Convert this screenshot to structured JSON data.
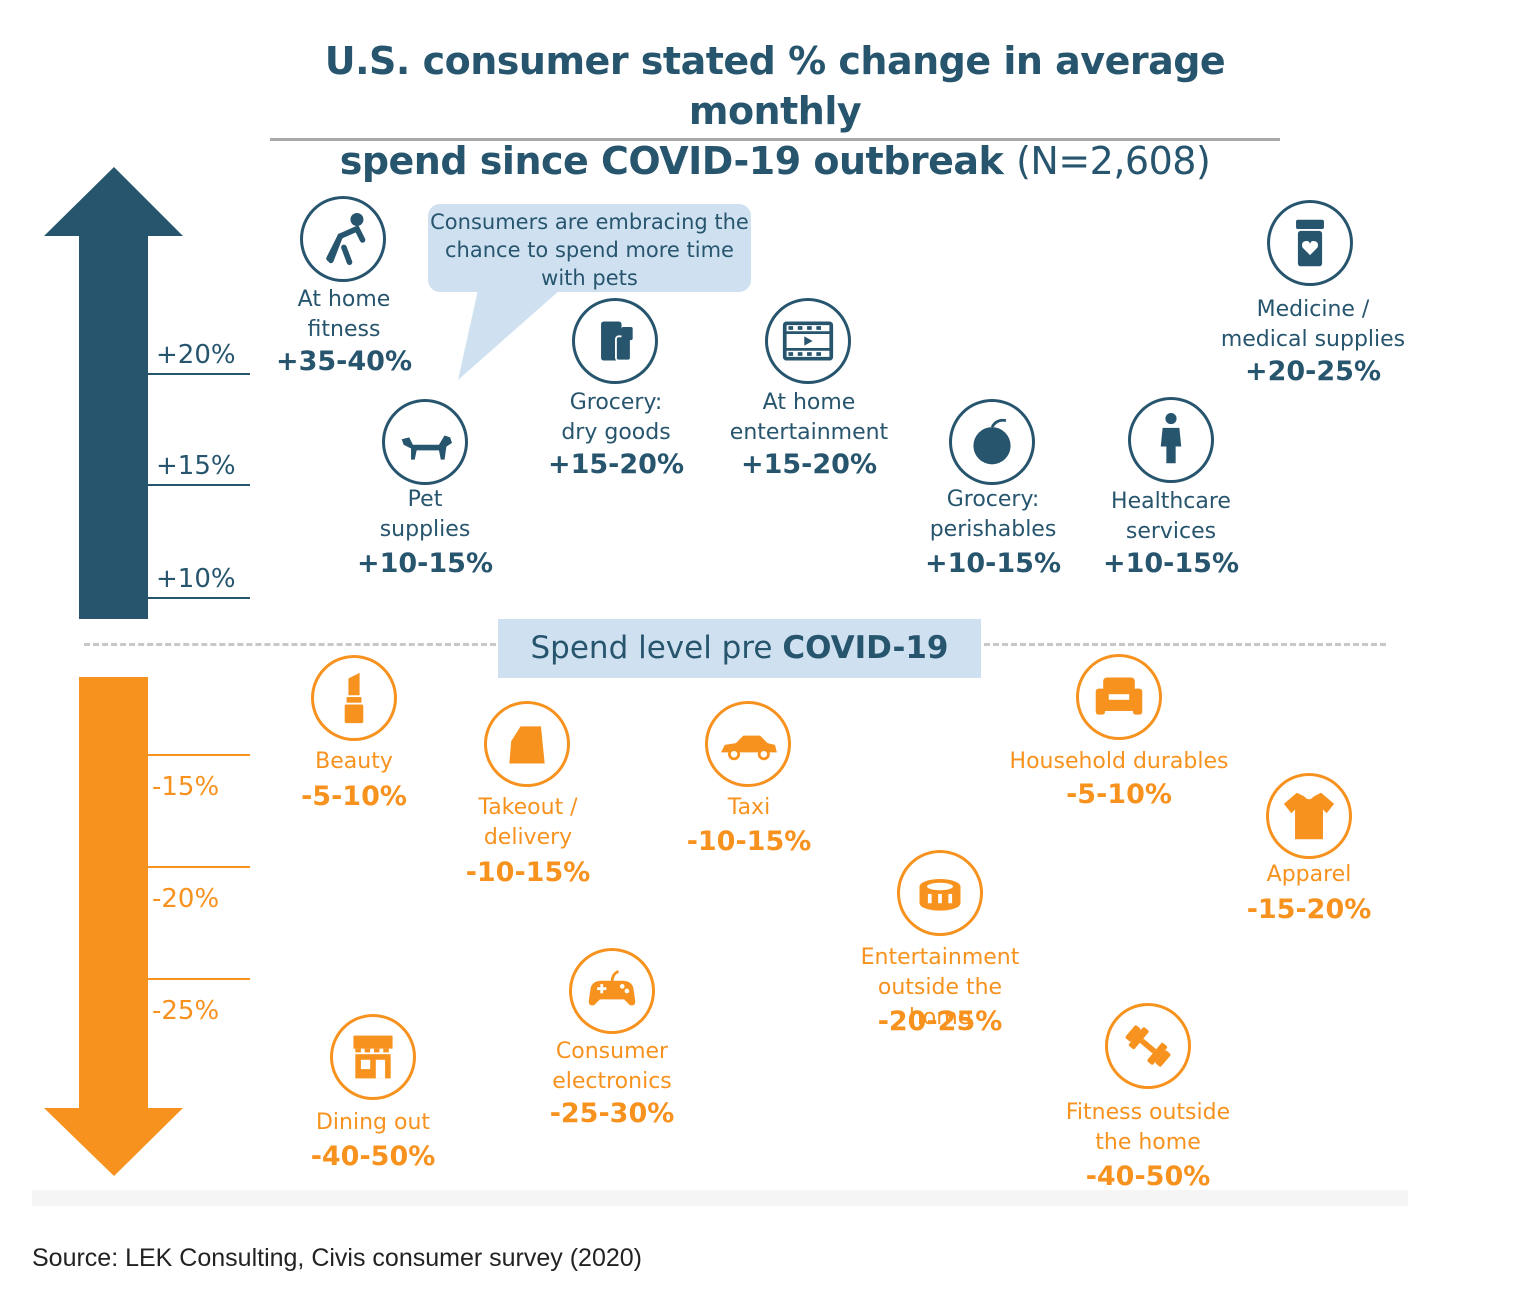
{
  "title": {
    "line1": "U.S. consumer stated % change in average monthly",
    "line2": "spend since COVID-19 outbreak",
    "n": "(N=2,608)"
  },
  "colors": {
    "increase": "#27556e",
    "decrease": "#f7921e",
    "highlight": "#cfe1f1"
  },
  "chart_data": {
    "type": "scatter",
    "title": "U.S. consumer stated % change in average monthly spend since COVID-19 outbreak (N=2,608)",
    "baseline_label_pre": "Spend level pre ",
    "baseline_label_bold": "COVID-19",
    "y_ticks_increase": [
      "+20%",
      "+15%",
      "+10%"
    ],
    "y_ticks_decrease": [
      "-15%",
      "-20%",
      "-25%"
    ],
    "callout": "Consumers are embracing the chance to spend more time with pets",
    "categories": [
      {
        "label": "At home fitness",
        "value": "+35-40%",
        "low": 35,
        "high": 40,
        "direction": "up",
        "icon": "stretching-person-icon"
      },
      {
        "label": "Pet supplies",
        "value": "+10-15%",
        "low": 10,
        "high": 15,
        "direction": "up",
        "icon": "dog-icon"
      },
      {
        "label": "Grocery: dry goods",
        "value": "+15-20%",
        "low": 15,
        "high": 20,
        "direction": "up",
        "icon": "canned-goods-icon"
      },
      {
        "label": "At home entertainment",
        "value": "+15-20%",
        "low": 15,
        "high": 20,
        "direction": "up",
        "icon": "film-strip-icon"
      },
      {
        "label": "Grocery: perishables",
        "value": "+10-15%",
        "low": 10,
        "high": 15,
        "direction": "up",
        "icon": "fruit-icon"
      },
      {
        "label": "Healthcare services",
        "value": "+10-15%",
        "low": 10,
        "high": 15,
        "direction": "up",
        "icon": "doctor-icon"
      },
      {
        "label": "Medicine / medical supplies",
        "value": "+20-25%",
        "low": 20,
        "high": 25,
        "direction": "up",
        "icon": "medicine-bottle-icon"
      },
      {
        "label": "Beauty",
        "value": "-5-10%",
        "low": -10,
        "high": -5,
        "direction": "down",
        "icon": "lipstick-icon"
      },
      {
        "label": "Takeout / delivery",
        "value": "-10-15%",
        "low": -15,
        "high": -10,
        "direction": "down",
        "icon": "paper-bag-icon"
      },
      {
        "label": "Taxi",
        "value": "-10-15%",
        "low": -15,
        "high": -10,
        "direction": "down",
        "icon": "car-icon"
      },
      {
        "label": "Household durables",
        "value": "-5-10%",
        "low": -10,
        "high": -5,
        "direction": "down",
        "icon": "armchair-icon"
      },
      {
        "label": "Apparel",
        "value": "-15-20%",
        "low": -20,
        "high": -15,
        "direction": "down",
        "icon": "shirt-icon"
      },
      {
        "label": "Entertainment outside the home",
        "value": "-20-25%",
        "low": -25,
        "high": -20,
        "direction": "down",
        "icon": "stadium-icon"
      },
      {
        "label": "Consumer electronics",
        "value": "-25-30%",
        "low": -30,
        "high": -25,
        "direction": "down",
        "icon": "game-controller-icon"
      },
      {
        "label": "Dining out",
        "value": "-40-50%",
        "low": -50,
        "high": -40,
        "direction": "down",
        "icon": "restaurant-icon"
      },
      {
        "label": "Fitness outside the home",
        "value": "-40-50%",
        "low": -50,
        "high": -40,
        "direction": "down",
        "icon": "dumbbell-icon"
      }
    ]
  },
  "labels": {
    "c0": [
      "At home",
      "fitness"
    ],
    "c1": [
      "Pet",
      "supplies"
    ],
    "c2": [
      "Grocery:",
      "dry goods"
    ],
    "c3": [
      "At home",
      "entertainment"
    ],
    "c4": [
      "Grocery:",
      "perishables"
    ],
    "c5": [
      "Healthcare",
      "services"
    ],
    "c6": [
      "Medicine /",
      "medical supplies"
    ],
    "c7": [
      "Beauty"
    ],
    "c8": [
      "Takeout /",
      "delivery"
    ],
    "c9": [
      "Taxi"
    ],
    "c10": [
      "Household durables"
    ],
    "c11": [
      "Apparel"
    ],
    "c12": [
      "Entertainment",
      "outside the",
      "home"
    ],
    "c13": [
      "Consumer",
      "electronics"
    ],
    "c14": [
      "Dining out"
    ],
    "c15": [
      "Fitness outside",
      "the home"
    ]
  },
  "source": "Source: LEK Consulting, Civis consumer survey (2020)"
}
